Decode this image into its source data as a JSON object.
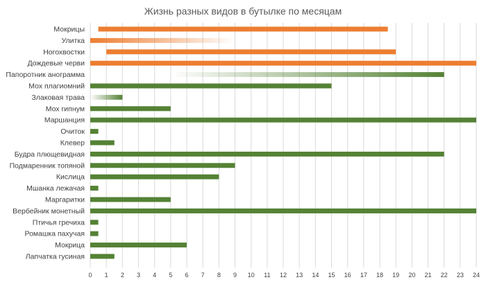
{
  "chart_data": {
    "type": "bar",
    "orientation": "horizontal-floating",
    "title": "Жизнь разных видов в бутылке по месяцам",
    "xlabel": "",
    "ylabel": "",
    "xlim": [
      0,
      24
    ],
    "xticks": [
      "0",
      "1",
      "2",
      "3",
      "4",
      "5",
      "6",
      "7",
      "8",
      "9",
      "10",
      "11",
      "12",
      "13",
      "14",
      "15",
      "16",
      "17",
      "18",
      "19",
      "20",
      "21",
      "22",
      "23",
      "24"
    ],
    "grid": true,
    "legend": "none",
    "colors": {
      "orange": "#ED7D31",
      "green": "#548235",
      "grid": "#D9D9D9",
      "text": "#404040"
    },
    "bars": [
      {
        "label": "Мокрицы",
        "start": 0.5,
        "end": 18.5,
        "color": "orange",
        "fade": "none"
      },
      {
        "label": "Улитка",
        "start": 0,
        "end": 9,
        "color": "orange",
        "fade": "out"
      },
      {
        "label": "Ногохвостки",
        "start": 1,
        "end": 19,
        "color": "orange",
        "fade": "none"
      },
      {
        "label": "Дождевые черви",
        "start": 0,
        "end": 24,
        "color": "orange",
        "fade": "none"
      },
      {
        "label": "Папоротник анограмма",
        "start": 5,
        "end": 22,
        "color": "green",
        "fade": "in"
      },
      {
        "label": "Мох плагиомний",
        "start": 0,
        "end": 15,
        "color": "green",
        "fade": "none"
      },
      {
        "label": "Злаковая трава",
        "start": 0,
        "end": 2,
        "color": "green",
        "fade": "in"
      },
      {
        "label": "Мох гипнум",
        "start": 0,
        "end": 5,
        "color": "green",
        "fade": "none"
      },
      {
        "label": "Маршанция",
        "start": 0,
        "end": 24,
        "color": "green",
        "fade": "none"
      },
      {
        "label": "Очиток",
        "start": 0,
        "end": 0.5,
        "color": "green",
        "fade": "none"
      },
      {
        "label": "Клевер",
        "start": 0,
        "end": 1.5,
        "color": "green",
        "fade": "none"
      },
      {
        "label": "Будра плющевидная",
        "start": 0,
        "end": 22,
        "color": "green",
        "fade": "none"
      },
      {
        "label": "Подмаренник топяной",
        "start": 0,
        "end": 9,
        "color": "green",
        "fade": "none"
      },
      {
        "label": "Кислица",
        "start": 0,
        "end": 8,
        "color": "green",
        "fade": "none"
      },
      {
        "label": "Мшанка лежачая",
        "start": 0,
        "end": 0.5,
        "color": "green",
        "fade": "none"
      },
      {
        "label": "Маргаритки",
        "start": 0,
        "end": 5,
        "color": "green",
        "fade": "none"
      },
      {
        "label": "Вербейник монетный",
        "start": 0,
        "end": 24,
        "color": "green",
        "fade": "none"
      },
      {
        "label": "Птичья гречиха",
        "start": 0,
        "end": 0.5,
        "color": "green",
        "fade": "none"
      },
      {
        "label": "Ромашка пахучая",
        "start": 0,
        "end": 0.5,
        "color": "green",
        "fade": "none"
      },
      {
        "label": "Мокрица",
        "start": 0,
        "end": 6,
        "color": "green",
        "fade": "none"
      },
      {
        "label": "Лапчатка гусиная",
        "start": 0,
        "end": 1.5,
        "color": "green",
        "fade": "none"
      }
    ]
  }
}
